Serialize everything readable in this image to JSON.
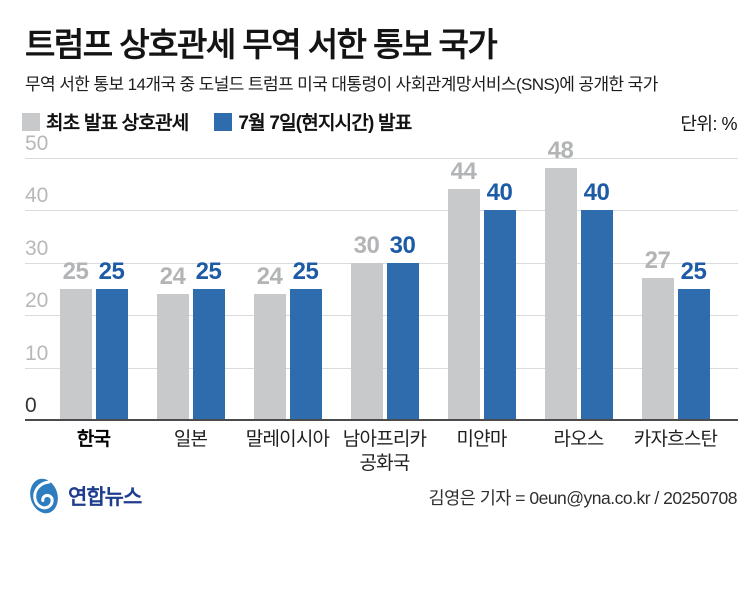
{
  "header": {
    "title": "트럼프 상호관세 무역 서한 통보 국가",
    "subtitle": "무역 서한 통보 14개국 중 도널드 트럼프 미국 대통령이 사회관계망서비스(SNS)에 공개한 국가",
    "unit_label": "단위: %"
  },
  "chart_data": {
    "type": "bar",
    "title": "트럼프 상호관세 무역 서한 통보 국가",
    "categories": [
      "한국",
      "일본",
      "말레이시아",
      "남아프리카\n공화국",
      "미얀마",
      "라오스",
      "카자흐스탄"
    ],
    "highlighted_category": "한국",
    "series": [
      {
        "name": "최초 발표 상호관세",
        "color": "#c8c9cb",
        "label_color": "#b2b4b6",
        "values": [
          25,
          24,
          24,
          30,
          44,
          48,
          27
        ]
      },
      {
        "name": "7월 7일(현지시간) 발표",
        "color": "#2e6cae",
        "label_color": "#1e5ba7",
        "values": [
          25,
          25,
          25,
          30,
          40,
          40,
          25
        ]
      }
    ],
    "ylim": [
      0,
      50
    ],
    "yticks": [
      0,
      10,
      20,
      30,
      40,
      50
    ],
    "unit": "%",
    "grid": true,
    "legend_position": "top-left",
    "colors": {
      "gridline": "#dadbdc",
      "axis": "#4b4b4e",
      "ytick": "#b7b8ba",
      "ytick_zero": "#333436"
    }
  },
  "footer": {
    "publisher": "연합뉴스",
    "logo": "yonhap-logo",
    "credit": "김영은 기자 = 0eun@yna.co.kr / 20250708"
  }
}
